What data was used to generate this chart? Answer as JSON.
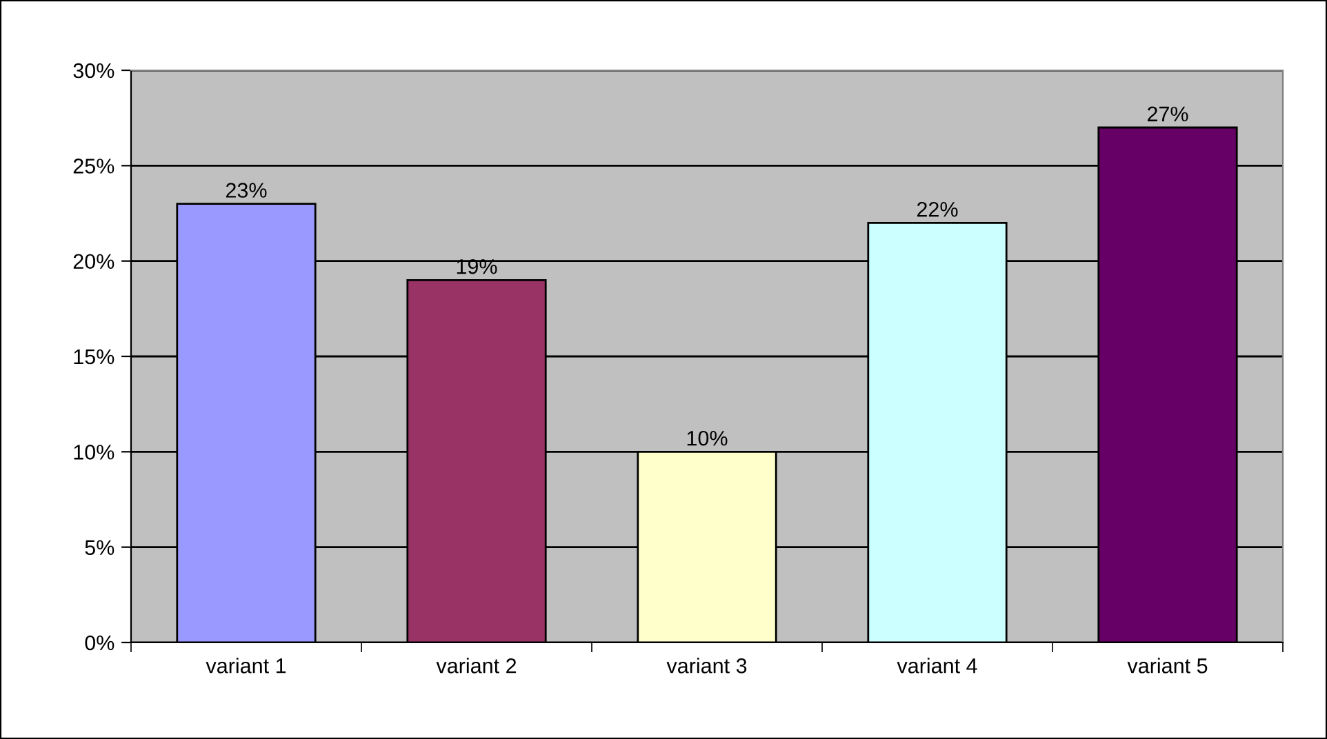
{
  "chart_data": {
    "type": "bar",
    "categories": [
      "variant 1",
      "variant 2",
      "variant 3",
      "variant 4",
      "variant 5"
    ],
    "values": [
      23,
      19,
      10,
      22,
      27
    ],
    "colors": [
      "#9999ff",
      "#993366",
      "#ffffcc",
      "#ccffff",
      "#660066"
    ],
    "value_labels": [
      "23%",
      "19%",
      "10%",
      "22%",
      "27%"
    ],
    "ylim": [
      0,
      30
    ],
    "yticks": [
      {
        "value": 0,
        "label": "0%"
      },
      {
        "value": 5,
        "label": "5%"
      },
      {
        "value": 10,
        "label": "10%"
      },
      {
        "value": 15,
        "label": "15%"
      },
      {
        "value": 20,
        "label": "20%"
      },
      {
        "value": 25,
        "label": "25%"
      },
      {
        "value": 30,
        "label": "30%"
      }
    ],
    "grid": "y",
    "legend": false
  }
}
